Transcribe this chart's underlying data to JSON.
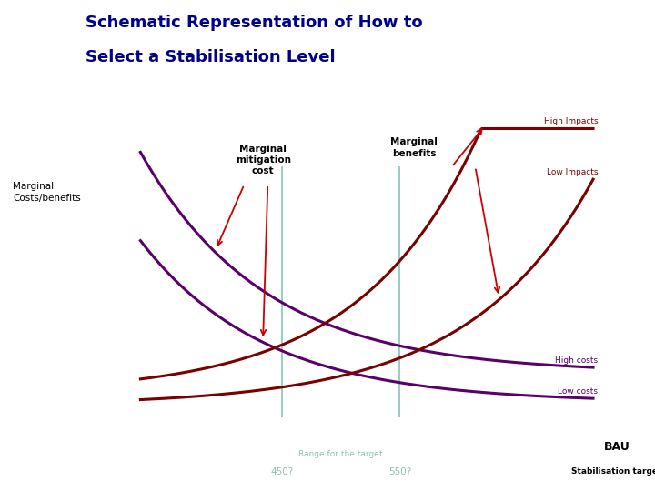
{
  "title_line1": "Schematic Representation of How to",
  "title_line2": "Select a Stabilisation Level",
  "title_color": "#00008B",
  "ylabel": "Marginal\nCosts/benefits",
  "xlabel_bau": "BAU",
  "xlabel_stab": "Stabilisation target",
  "label_mmc": "Marginal\nmitigation\ncost",
  "label_mb": "Marginal\nbenefits",
  "label_high_impacts": "High Impacts",
  "label_low_impacts": "Low Impacts",
  "label_high_costs": "High costs",
  "label_low_costs": "Low costs",
  "label_450": "450?",
  "label_550": "550?",
  "label_range": "Range for the target",
  "curve_color_dark_red": "#7B0000",
  "curve_color_purple": "#5B006B",
  "axis_color": "#000000",
  "vertical_line_color": "#90C8C0",
  "arrow_color": "#CC0000",
  "range_text_color": "#90C0B8",
  "range_label_color": "#90C0B0",
  "x_range": [
    0,
    10
  ],
  "y_range": [
    0,
    10
  ]
}
